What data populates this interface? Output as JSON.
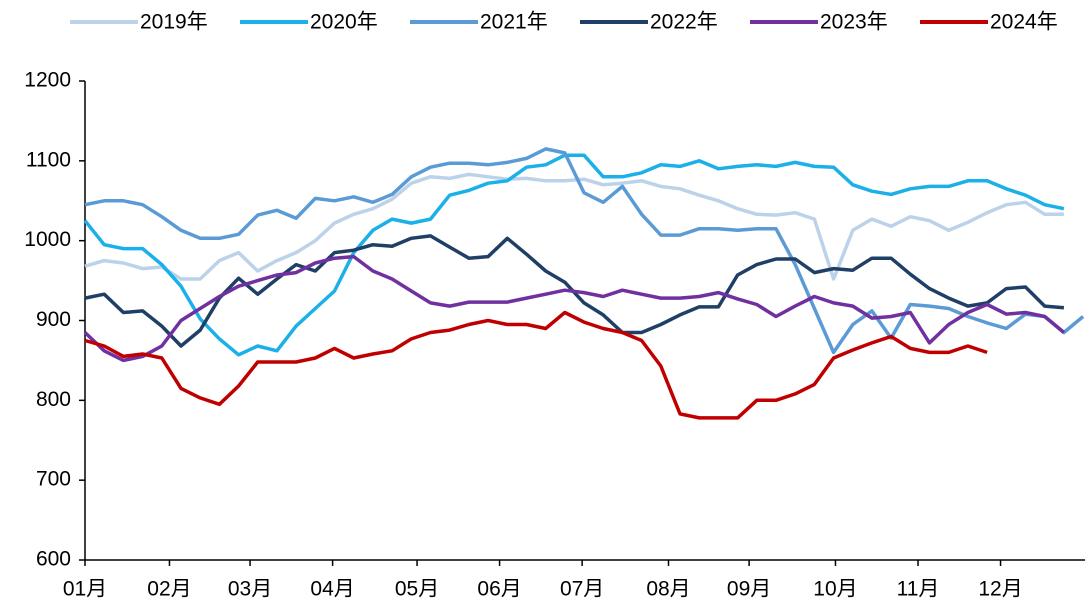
{
  "chart_data": {
    "type": "line",
    "x": [
      0,
      1,
      2,
      3,
      4,
      5,
      6,
      7,
      8,
      9,
      10,
      11,
      12,
      13,
      14,
      15,
      16,
      17,
      18,
      19,
      20,
      21,
      22,
      23,
      24,
      25,
      26,
      27,
      28,
      29,
      30,
      31,
      32,
      33,
      34,
      35,
      36,
      37,
      38,
      39,
      40,
      41,
      42,
      43,
      44,
      45,
      46,
      47,
      48,
      49,
      50,
      51,
      52
    ],
    "xlim": [
      0,
      52.1
    ],
    "xticks": [
      {
        "value": 0,
        "label": "01月"
      },
      {
        "value": 4.4,
        "label": "02月"
      },
      {
        "value": 8.6,
        "label": "03月"
      },
      {
        "value": 12.9,
        "label": "04月"
      },
      {
        "value": 17.3,
        "label": "05月"
      },
      {
        "value": 21.6,
        "label": "06月"
      },
      {
        "value": 25.9,
        "label": "07月"
      },
      {
        "value": 30.4,
        "label": "08月"
      },
      {
        "value": 34.6,
        "label": "09月"
      },
      {
        "value": 39.1,
        "label": "10月"
      },
      {
        "value": 43.4,
        "label": "11月"
      },
      {
        "value": 47.7,
        "label": "12月"
      }
    ],
    "ylim": [
      600,
      1200
    ],
    "yticks": [
      600,
      700,
      800,
      900,
      1000,
      1100,
      1200
    ],
    "series": [
      {
        "name": "2019年",
        "color": "#bcd2ea",
        "values": [
          968,
          975,
          972,
          965,
          967,
          952,
          952,
          975,
          985,
          962,
          975,
          985,
          1000,
          1022,
          1033,
          1040,
          1052,
          1072,
          1080,
          1078,
          1083,
          1080,
          1077,
          1078,
          1075,
          1075,
          1077,
          1070,
          1072,
          1075,
          1068,
          1065,
          1057,
          1050,
          1040,
          1033,
          1032,
          1035,
          1027,
          952,
          1013,
          1027,
          1018,
          1030,
          1025,
          1013,
          1023,
          1035,
          1045,
          1048,
          1033,
          1033,
          null
        ]
      },
      {
        "name": "2020年",
        "color": "#1cb0e8",
        "values": [
          1025,
          995,
          990,
          990,
          970,
          943,
          902,
          877,
          857,
          868,
          862,
          893,
          915,
          937,
          985,
          1013,
          1027,
          1022,
          1027,
          1057,
          1063,
          1072,
          1075,
          1092,
          1095,
          1107,
          1107,
          1080,
          1080,
          1085,
          1095,
          1093,
          1100,
          1090,
          1093,
          1095,
          1093,
          1098,
          1093,
          1092,
          1070,
          1062,
          1058,
          1065,
          1068,
          1068,
          1075,
          1075,
          1065,
          1057,
          1045,
          1040,
          null
        ]
      },
      {
        "name": "2021年",
        "color": "#5b9bd5",
        "values": [
          1045,
          1050,
          1050,
          1045,
          1030,
          1013,
          1003,
          1003,
          1008,
          1032,
          1038,
          1028,
          1053,
          1050,
          1055,
          1048,
          1058,
          1080,
          1092,
          1097,
          1097,
          1095,
          1098,
          1103,
          1115,
          1110,
          1060,
          1048,
          1068,
          1033,
          1007,
          1007,
          1015,
          1015,
          1013,
          1015,
          1015,
          970,
          915,
          860,
          895,
          912,
          878,
          920,
          918,
          915,
          905,
          897,
          890,
          908,
          905,
          885,
          905
        ]
      },
      {
        "name": "2022年",
        "color": "#1f3f66",
        "values": [
          928,
          933,
          910,
          912,
          893,
          868,
          888,
          928,
          953,
          933,
          952,
          970,
          962,
          985,
          988,
          995,
          993,
          1003,
          1006,
          992,
          978,
          980,
          1003,
          983,
          962,
          948,
          922,
          907,
          885,
          885,
          895,
          907,
          917,
          917,
          957,
          970,
          977,
          977,
          960,
          965,
          963,
          978,
          978,
          958,
          940,
          928,
          918,
          922,
          940,
          942,
          918,
          916,
          null
        ]
      },
      {
        "name": "2023年",
        "color": "#7030a0",
        "values": [
          885,
          862,
          850,
          855,
          868,
          900,
          915,
          930,
          943,
          950,
          957,
          960,
          972,
          978,
          980,
          962,
          952,
          937,
          922,
          918,
          923,
          923,
          923,
          928,
          933,
          938,
          935,
          930,
          938,
          933,
          928,
          928,
          930,
          935,
          927,
          920,
          905,
          918,
          930,
          922,
          918,
          903,
          905,
          910,
          872,
          895,
          910,
          920,
          908,
          910,
          905,
          885,
          null
        ]
      },
      {
        "name": "2024年",
        "color": "#c00000",
        "values": [
          875,
          868,
          855,
          858,
          853,
          815,
          803,
          795,
          818,
          848,
          848,
          848,
          853,
          865,
          853,
          858,
          862,
          877,
          885,
          888,
          895,
          900,
          895,
          895,
          890,
          910,
          898,
          890,
          885,
          875,
          843,
          783,
          778,
          778,
          778,
          800,
          800,
          808,
          820,
          853,
          863,
          872,
          880,
          865,
          860,
          860,
          868,
          860,
          null,
          null,
          null,
          null,
          null
        ]
      }
    ]
  }
}
